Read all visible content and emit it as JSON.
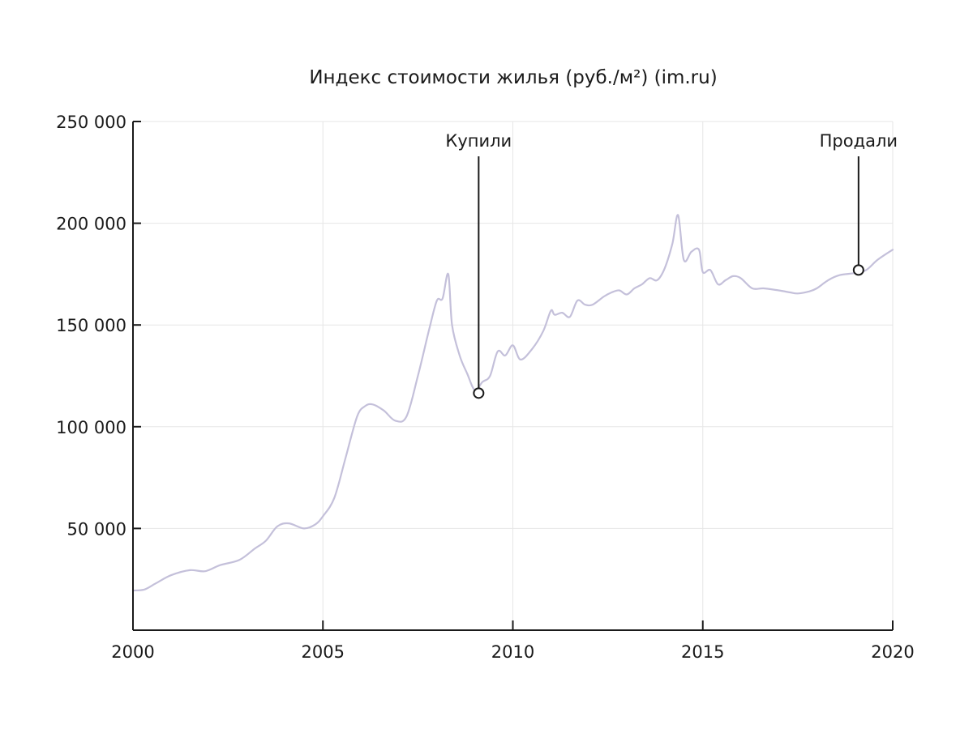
{
  "chart_data": {
    "type": "line",
    "title": "Индекс стоимости жилья (руб./м²) (im.ru)",
    "xlabel": "",
    "ylabel": "",
    "xlim": [
      2000,
      2020
    ],
    "ylim": [
      0,
      250000
    ],
    "x_ticks": [
      {
        "value": 2000,
        "label": "2000"
      },
      {
        "value": 2005,
        "label": "2005"
      },
      {
        "value": 2010,
        "label": "2010"
      },
      {
        "value": 2015,
        "label": "2015"
      },
      {
        "value": 2020,
        "label": "2020"
      }
    ],
    "y_ticks": [
      {
        "value": 50000,
        "label": "50 000"
      },
      {
        "value": 100000,
        "label": "100 000"
      },
      {
        "value": 150000,
        "label": "150 000"
      },
      {
        "value": 200000,
        "label": "200 000"
      },
      {
        "value": 250000,
        "label": "250 000"
      }
    ],
    "grid": true,
    "legend": "none",
    "series": [
      {
        "color": "#c4c0da",
        "x": [
          2000.0,
          2000.3,
          2000.6,
          2001.0,
          2001.5,
          2001.9,
          2002.3,
          2002.8,
          2003.2,
          2003.5,
          2003.8,
          2004.1,
          2004.5,
          2004.8,
          2005.0,
          2005.3,
          2005.6,
          2005.9,
          2006.1,
          2006.3,
          2006.6,
          2006.9,
          2007.2,
          2007.5,
          2007.8,
          2008.0,
          2008.15,
          2008.3,
          2008.4,
          2008.6,
          2008.8,
          2009.0,
          2009.2,
          2009.4,
          2009.6,
          2009.8,
          2010.0,
          2010.2,
          2010.5,
          2010.8,
          2011.0,
          2011.1,
          2011.3,
          2011.5,
          2011.7,
          2011.9,
          2012.1,
          2012.4,
          2012.6,
          2012.8,
          2013.0,
          2013.2,
          2013.4,
          2013.6,
          2013.8,
          2014.0,
          2014.2,
          2014.35,
          2014.5,
          2014.7,
          2014.9,
          2015.0,
          2015.2,
          2015.4,
          2015.6,
          2015.8,
          2016.0,
          2016.3,
          2016.6,
          2017.0,
          2017.3,
          2017.5,
          2017.8,
          2018.0,
          2018.3,
          2018.6,
          2019.0,
          2019.3,
          2019.6,
          2020.0
        ],
        "y": [
          19500,
          20000,
          23000,
          27000,
          29500,
          29000,
          32000,
          34500,
          40000,
          44000,
          51000,
          52500,
          50000,
          52000,
          56000,
          65000,
          85000,
          105000,
          110000,
          111000,
          108000,
          103000,
          105000,
          125000,
          148000,
          162000,
          163000,
          175000,
          150000,
          135000,
          126000,
          118000,
          122000,
          125000,
          137000,
          135000,
          140000,
          133000,
          138000,
          147000,
          157000,
          155000,
          156000,
          154000,
          162000,
          160000,
          160000,
          164000,
          166000,
          167000,
          165000,
          168000,
          170000,
          173000,
          172000,
          178000,
          190000,
          204000,
          182000,
          186000,
          187000,
          176000,
          177000,
          170000,
          172000,
          174000,
          173000,
          168000,
          168000,
          167000,
          166000,
          165500,
          166500,
          168000,
          172000,
          174500,
          175500,
          177000,
          182000,
          187000
        ]
      }
    ],
    "annotations": [
      {
        "label": "Купили",
        "x": 2009.1,
        "y": 116500
      },
      {
        "label": "Продали",
        "x": 2019.1,
        "y": 177000
      }
    ]
  }
}
